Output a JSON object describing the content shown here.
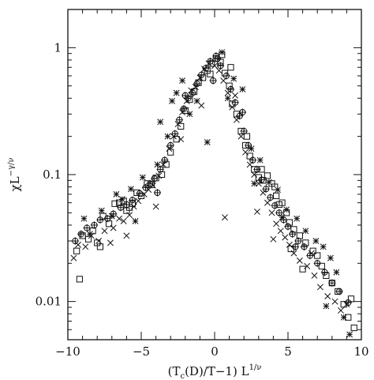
{
  "chart_data": {
    "type": "scatter",
    "title": "",
    "xlabel_main": "(T",
    "xlabel_sub": "c",
    "xlabel_mid": "(D)/T−1) L",
    "xlabel_sup": "1/ν",
    "ylabel_main": "χL",
    "ylabel_sup": "−γ/ν",
    "xlim": [
      -10,
      10
    ],
    "ylim": [
      0.005,
      2
    ],
    "yscale": "log",
    "x_ticks": [
      -10,
      -5,
      0,
      5,
      10
    ],
    "x_tick_labels": [
      "−10",
      "−5",
      "0",
      "5",
      "10"
    ],
    "y_ticks": [
      0.01,
      0.1,
      1
    ],
    "y_tick_labels": [
      "0.01",
      "0.1",
      "1"
    ],
    "grid": false,
    "legend": "none",
    "series": [
      {
        "marker": "square",
        "points": [
          [
            -9.4,
            0.025
          ],
          [
            -9.2,
            0.015
          ],
          [
            -9.0,
            0.033
          ],
          [
            -8.6,
            0.031
          ],
          [
            -8.3,
            0.036
          ],
          [
            -8.0,
            0.029
          ],
          [
            -7.6,
            0.047
          ],
          [
            -7.2,
            0.041
          ],
          [
            -6.8,
            0.059
          ],
          [
            -6.5,
            0.06
          ],
          [
            -6.2,
            0.062
          ],
          [
            -6.0,
            0.052
          ],
          [
            -5.6,
            0.059
          ],
          [
            -5.3,
            0.072
          ],
          [
            -5.0,
            0.068
          ],
          [
            -4.6,
            0.085
          ],
          [
            -4.3,
            0.083
          ],
          [
            -4.0,
            0.094
          ],
          [
            -3.6,
            0.1
          ],
          [
            -3.3,
            0.12
          ],
          [
            -3.0,
            0.15
          ],
          [
            -2.6,
            0.19
          ],
          [
            -2.3,
            0.24
          ],
          [
            -2.0,
            0.32
          ],
          [
            -1.7,
            0.39
          ],
          [
            -1.4,
            0.45
          ],
          [
            -1.1,
            0.53
          ],
          [
            -0.8,
            0.58
          ],
          [
            -0.5,
            0.66
          ],
          [
            -0.2,
            0.75
          ],
          [
            0.1,
            0.82
          ],
          [
            0.4,
            0.77
          ],
          [
            0.7,
            0.63
          ],
          [
            1.0,
            0.5
          ],
          [
            1.2,
            0.36
          ],
          [
            1.5,
            0.3
          ],
          [
            1.8,
            0.22
          ],
          [
            2.1,
            0.17
          ],
          [
            2.4,
            0.14
          ],
          [
            2.7,
            0.11
          ],
          [
            3.0,
            0.095
          ],
          [
            3.3,
            0.09
          ],
          [
            3.6,
            0.098
          ],
          [
            3.9,
            0.085
          ],
          [
            4.2,
            0.068
          ],
          [
            4.4,
            0.058
          ],
          [
            4.6,
            0.06
          ],
          [
            4.9,
            0.05
          ],
          [
            5.1,
            0.042
          ],
          [
            5.4,
            0.037
          ],
          [
            5.8,
            0.033
          ],
          [
            6.2,
            0.029
          ],
          [
            6.7,
            0.025
          ],
          [
            7.0,
            0.023
          ],
          [
            7.3,
            0.019
          ],
          [
            7.6,
            0.016
          ],
          [
            8.0,
            0.014
          ],
          [
            8.4,
            0.012
          ],
          [
            8.8,
            0.0095
          ],
          [
            9.1,
            0.0075
          ],
          [
            9.5,
            0.0062
          ],
          [
            0.5,
            0.88
          ],
          [
            1.1,
            0.7
          ],
          [
            -0.3,
            0.62
          ],
          [
            3.2,
            0.11
          ],
          [
            4.1,
            0.08
          ],
          [
            5.2,
            0.026
          ],
          [
            6.0,
            0.018
          ],
          [
            9.3,
            0.0105
          ],
          [
            2.2,
            0.2
          ],
          [
            -7.8,
            0.027
          ],
          [
            -5.8,
            0.055
          ]
        ]
      },
      {
        "marker": "x",
        "points": [
          [
            -9.6,
            0.022
          ],
          [
            -9.3,
            0.028
          ],
          [
            -8.8,
            0.027
          ],
          [
            -8.4,
            0.033
          ],
          [
            -7.9,
            0.03
          ],
          [
            -7.5,
            0.036
          ],
          [
            -7.1,
            0.029
          ],
          [
            -6.9,
            0.038
          ],
          [
            -6.5,
            0.045
          ],
          [
            -6.2,
            0.043
          ],
          [
            -5.8,
            0.048
          ],
          [
            -5.5,
            0.056
          ],
          [
            -5.2,
            0.062
          ],
          [
            -4.8,
            0.07
          ],
          [
            -4.5,
            0.076
          ],
          [
            -4.2,
            0.082
          ],
          [
            -3.8,
            0.098
          ],
          [
            -3.5,
            0.12
          ],
          [
            -3.1,
            0.16
          ],
          [
            -2.8,
            0.2
          ],
          [
            -2.5,
            0.25
          ],
          [
            -2.2,
            0.31
          ],
          [
            -1.9,
            0.38
          ],
          [
            -1.6,
            0.46
          ],
          [
            -1.3,
            0.49
          ],
          [
            -1.0,
            0.58
          ],
          [
            -0.7,
            0.68
          ],
          [
            -0.4,
            0.75
          ],
          [
            0.0,
            0.72
          ],
          [
            0.3,
            0.66
          ],
          [
            0.6,
            0.55
          ],
          [
            0.9,
            0.44
          ],
          [
            1.2,
            0.34
          ],
          [
            1.5,
            0.27
          ],
          [
            1.8,
            0.2
          ],
          [
            2.1,
            0.15
          ],
          [
            2.4,
            0.12
          ],
          [
            2.7,
            0.1
          ],
          [
            3.0,
            0.085
          ],
          [
            3.3,
            0.072
          ],
          [
            3.6,
            0.06
          ],
          [
            3.9,
            0.05
          ],
          [
            4.2,
            0.041
          ],
          [
            4.5,
            0.036
          ],
          [
            4.8,
            0.032
          ],
          [
            5.1,
            0.028
          ],
          [
            5.4,
            0.024
          ],
          [
            5.8,
            0.021
          ],
          [
            6.3,
            0.019
          ],
          [
            6.8,
            0.016
          ],
          [
            7.2,
            0.013
          ],
          [
            7.7,
            0.011
          ],
          [
            8.2,
            0.01
          ],
          [
            8.6,
            0.0085
          ],
          [
            9.0,
            0.0095
          ],
          [
            0.7,
            0.046
          ],
          [
            -2.3,
            0.19
          ],
          [
            -0.9,
            0.35
          ],
          [
            1.4,
            0.42
          ],
          [
            2.9,
            0.051
          ],
          [
            4.0,
            0.031
          ],
          [
            6.6,
            0.024
          ],
          [
            -4.0,
            0.056
          ],
          [
            -6.0,
            0.033
          ]
        ]
      },
      {
        "marker": "circle-cross",
        "points": [
          [
            -9.5,
            0.03
          ],
          [
            -9.1,
            0.034
          ],
          [
            -8.7,
            0.038
          ],
          [
            -8.2,
            0.04
          ],
          [
            -7.8,
            0.044
          ],
          [
            -7.3,
            0.045
          ],
          [
            -6.9,
            0.049
          ],
          [
            -6.4,
            0.055
          ],
          [
            -6.0,
            0.058
          ],
          [
            -5.6,
            0.063
          ],
          [
            -5.1,
            0.071
          ],
          [
            -4.7,
            0.079
          ],
          [
            -4.4,
            0.085
          ],
          [
            -4.1,
            0.093
          ],
          [
            -3.7,
            0.11
          ],
          [
            -3.4,
            0.13
          ],
          [
            -3.0,
            0.17
          ],
          [
            -2.7,
            0.21
          ],
          [
            -2.4,
            0.27
          ],
          [
            -2.1,
            0.33
          ],
          [
            -1.8,
            0.4
          ],
          [
            -1.5,
            0.44
          ],
          [
            -1.2,
            0.52
          ],
          [
            -0.9,
            0.61
          ],
          [
            -0.6,
            0.69
          ],
          [
            -0.3,
            0.78
          ],
          [
            0.1,
            0.86
          ],
          [
            0.4,
            0.72
          ],
          [
            0.8,
            0.6
          ],
          [
            1.1,
            0.47
          ],
          [
            1.4,
            0.37
          ],
          [
            1.7,
            0.29
          ],
          [
            2.0,
            0.22
          ],
          [
            2.3,
            0.17
          ],
          [
            2.6,
            0.13
          ],
          [
            2.9,
            0.11
          ],
          [
            3.2,
            0.091
          ],
          [
            3.5,
            0.077
          ],
          [
            3.8,
            0.066
          ],
          [
            4.1,
            0.057
          ],
          [
            4.4,
            0.05
          ],
          [
            4.7,
            0.044
          ],
          [
            5.0,
            0.039
          ],
          [
            5.3,
            0.034
          ],
          [
            5.7,
            0.03
          ],
          [
            6.1,
            0.027
          ],
          [
            6.5,
            0.023
          ],
          [
            7.0,
            0.02
          ],
          [
            7.5,
            0.017
          ],
          [
            8.0,
            0.014
          ],
          [
            8.5,
            0.012
          ],
          [
            9.1,
            0.0098
          ],
          [
            -2.0,
            0.42
          ],
          [
            -0.1,
            0.55
          ],
          [
            1.9,
            0.31
          ],
          [
            -3.9,
            0.072
          ],
          [
            5.5,
            0.027
          ],
          [
            0.2,
            0.82
          ]
        ]
      },
      {
        "marker": "asterisk",
        "points": [
          [
            -8.9,
            0.045
          ],
          [
            -8.5,
            0.034
          ],
          [
            -7.7,
            0.052
          ],
          [
            -7.0,
            0.047
          ],
          [
            -6.3,
            0.064
          ],
          [
            -5.7,
            0.077
          ],
          [
            -5.4,
            0.043
          ],
          [
            -4.9,
            0.095
          ],
          [
            -3.9,
            0.12
          ],
          [
            -3.2,
            0.2
          ],
          [
            -3.7,
            0.26
          ],
          [
            -2.9,
            0.38
          ],
          [
            -2.6,
            0.44
          ],
          [
            -1.7,
            0.3
          ],
          [
            -1.2,
            0.38
          ],
          [
            -0.5,
            0.18
          ],
          [
            0.5,
            0.92
          ],
          [
            1.3,
            0.57
          ],
          [
            1.9,
            0.47
          ],
          [
            2.5,
            0.16
          ],
          [
            3.1,
            0.13
          ],
          [
            3.7,
            0.087
          ],
          [
            4.3,
            0.076
          ],
          [
            4.9,
            0.053
          ],
          [
            5.6,
            0.045
          ],
          [
            6.2,
            0.036
          ],
          [
            6.9,
            0.03
          ],
          [
            7.4,
            0.027
          ],
          [
            7.9,
            0.022
          ],
          [
            8.3,
            0.017
          ],
          [
            8.8,
            0.0075
          ],
          [
            9.2,
            0.0055
          ],
          [
            7.6,
            0.0092
          ],
          [
            -6.7,
            0.07
          ],
          [
            2.7,
            0.085
          ],
          [
            4.6,
            0.046
          ],
          [
            -2.2,
            0.55
          ],
          [
            0.9,
            0.4
          ]
        ]
      }
    ]
  }
}
